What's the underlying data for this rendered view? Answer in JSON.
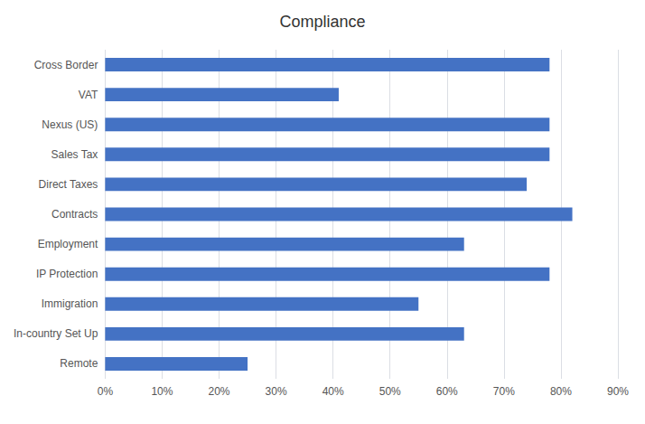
{
  "chart_data": {
    "type": "bar",
    "orientation": "horizontal",
    "title": "Compliance",
    "categories": [
      "Cross Border",
      "VAT",
      "Nexus (US)",
      "Sales Tax",
      "Direct Taxes",
      "Contracts",
      "Employment",
      "IP Protection",
      "Immigration",
      "In-country Set Up",
      "Remote"
    ],
    "values": [
      0.78,
      0.41,
      0.78,
      0.78,
      0.74,
      0.82,
      0.63,
      0.78,
      0.55,
      0.63,
      0.25
    ],
    "color": "#4472C4",
    "xlim": [
      0,
      0.9
    ],
    "xticks": [
      {
        "value": 0.0,
        "label": "0%"
      },
      {
        "value": 0.1,
        "label": "10%"
      },
      {
        "value": 0.2,
        "label": "20%"
      },
      {
        "value": 0.3,
        "label": "30%"
      },
      {
        "value": 0.4,
        "label": "40%"
      },
      {
        "value": 0.5,
        "label": "50%"
      },
      {
        "value": 0.6,
        "label": "60%"
      },
      {
        "value": 0.7,
        "label": "70%"
      },
      {
        "value": 0.8,
        "label": "80%"
      },
      {
        "value": 0.9,
        "label": "90%"
      }
    ],
    "grid": true
  }
}
